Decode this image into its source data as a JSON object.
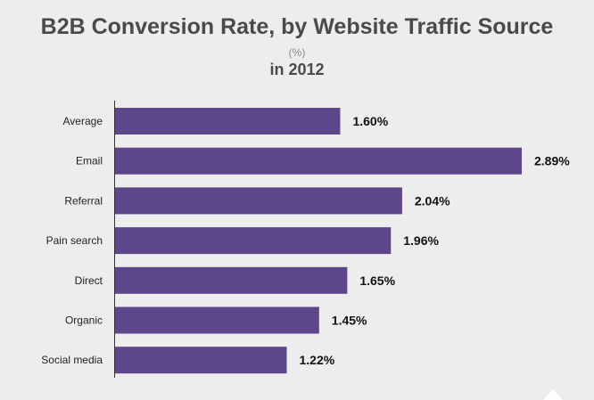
{
  "colors": {
    "bar": "#5e468a",
    "background": "#ededed",
    "axis": "#333333",
    "title": "#4a4a4a"
  },
  "chart_data": {
    "type": "bar",
    "orientation": "horizontal",
    "title": "B2B Conversion Rate, by Website Traffic Source",
    "unit": "(%)",
    "subtitle": "in 2012",
    "categories": [
      "Average",
      "Email",
      "Referral",
      "Pain search",
      "Direct",
      "Organic",
      "Social media"
    ],
    "values": [
      1.6,
      2.89,
      2.04,
      1.96,
      1.65,
      1.45,
      1.22
    ],
    "value_labels": [
      "1.60%",
      "2.89%",
      "2.04%",
      "1.96%",
      "1.65%",
      "1.45%",
      "1.22%"
    ],
    "xlim": [
      0,
      2.89
    ],
    "grid": false,
    "legend": "none"
  }
}
